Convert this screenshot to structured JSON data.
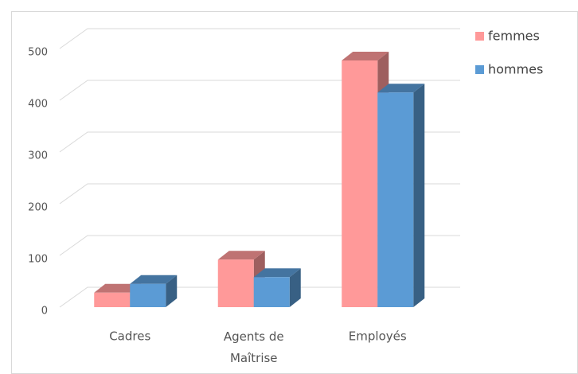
{
  "chart_data": {
    "type": "bar3d",
    "categories": [
      "Cadres",
      "Agents de Maîtrise",
      "Employés"
    ],
    "series": [
      {
        "name": "femmes",
        "color": "#ff9999",
        "values": [
          28,
          92,
          477
        ]
      },
      {
        "name": "hommes",
        "color": "#5b9bd5",
        "values": [
          45,
          58,
          415
        ]
      }
    ],
    "ylim": [
      0,
      500
    ],
    "yticks": [
      0,
      100,
      200,
      300,
      400,
      500
    ],
    "grid": true,
    "legend": "right"
  }
}
